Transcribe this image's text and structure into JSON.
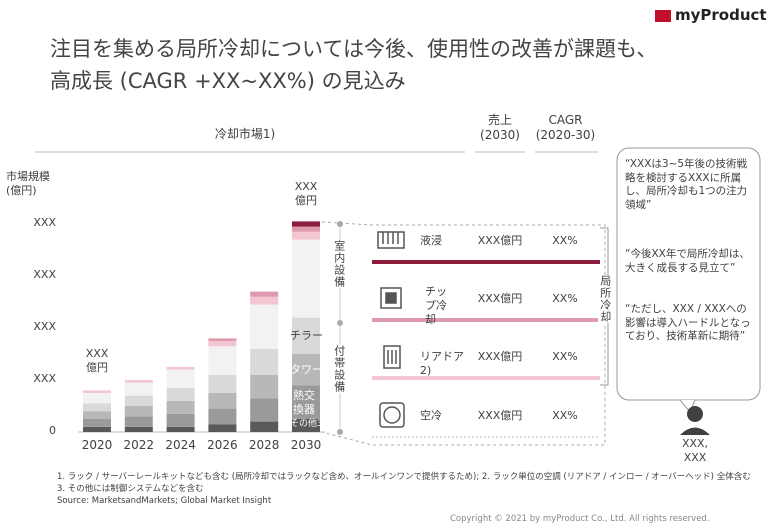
{
  "logo": "myProduct",
  "title": "注目を集める局所冷却については今後、使用性の改善が課題も、\n高成長 (CAGR +XX~XX%) の見込み",
  "columns": {
    "sales": "売上\n(2030)",
    "cagr": "CAGR\n(2020-30)"
  },
  "chart_data": {
    "type": "bar",
    "stacked": true,
    "title": "冷却市場1)",
    "y_label": "市場規模\n(億円)",
    "categories": [
      "2020",
      "2022",
      "2024",
      "2026",
      "2028",
      "2030"
    ],
    "series": [
      {
        "name": "その他3)",
        "color": "#595959",
        "values": [
          0.1,
          0.1,
          0.1,
          0.15,
          0.2,
          0.25
        ]
      },
      {
        "name": "熱交換器",
        "color": "#9a9a9a",
        "values": [
          0.15,
          0.2,
          0.25,
          0.3,
          0.45,
          0.65
        ]
      },
      {
        "name": "タワー",
        "color": "#b8b8b8",
        "values": [
          0.15,
          0.2,
          0.25,
          0.3,
          0.45,
          0.6
        ]
      },
      {
        "name": "チラー",
        "color": "#d9d9d9",
        "values": [
          0.15,
          0.2,
          0.25,
          0.35,
          0.5,
          0.7
        ]
      },
      {
        "name": "空冷",
        "color": "#f2f2f2",
        "values": [
          0.2,
          0.25,
          0.35,
          0.55,
          0.85,
          1.5
        ]
      },
      {
        "name": "リアドア2)",
        "color": "#f4c6d2",
        "values": [
          0.05,
          0.05,
          0.05,
          0.1,
          0.15,
          0.15
        ]
      },
      {
        "name": "チップ冷却",
        "color": "#e09aaf",
        "values": [
          0,
          0,
          0,
          0.05,
          0.1,
          0.1
        ]
      },
      {
        "name": "液浸",
        "color": "#8c1c3c",
        "values": [
          0,
          0,
          0,
          0,
          0,
          0.1
        ]
      }
    ],
    "ylim": [
      0,
      4.5
    ],
    "yticks": [
      0,
      {
        "value": 1,
        "label": "XXX"
      },
      {
        "value": 2,
        "label": "XXX"
      },
      {
        "value": 3,
        "label": "XXX"
      },
      {
        "value": 4,
        "label": "XXX"
      }
    ],
    "annotations": [
      "XXX\n億円",
      "XXX\n億円"
    ]
  },
  "groups": [
    "室内設備",
    "付帯設備",
    "局所冷却"
  ],
  "table": {
    "rows": [
      {
        "sales": "XXX億円",
        "cagr": "XX%"
      },
      {
        "sales": "XXX億円",
        "cagr": "XX%"
      },
      {
        "sales": "XXX億円",
        "cagr": "XX%"
      },
      {
        "sales": "XXX億円",
        "cagr": "XX%"
      }
    ]
  },
  "quotes": [
    "“XXXは3~5年後の技術戦略を検討するXXXに所属し、局所冷却も1つの注力領域”",
    "“今後XX年で局所冷却は、大きく成長する見立て”",
    "“ただし、XXX / XXXへの影響は導入ハードルとなっており、技術革新に期待”"
  ],
  "speaker": "XXX,\nXXX",
  "footnotes": [
    "1. ラック / サーバーレールキットなども含む (局所冷却ではラックなど含め、オールインワンで提供するため); 2. ラック単位の空調 (リアドア / インロー / オーバーヘッド) 全体含む",
    "3. その他には制御システムなどを含む",
    "Source: MarketsandMarkets; Global Market Insight"
  ],
  "copyright": "Copyright © 2021 by myProduct Co., Ltd.  All rights reserved."
}
